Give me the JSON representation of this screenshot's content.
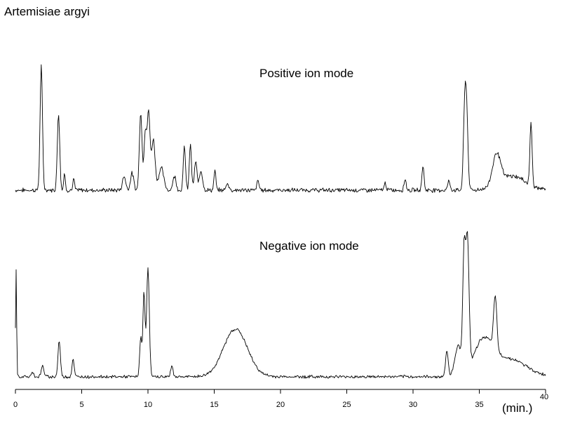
{
  "title": "Artemisiae  argyi",
  "chart_data": [
    {
      "type": "line",
      "name": "Positive ion mode",
      "label": "Positive ion mode",
      "xlim": [
        0,
        40
      ],
      "baseline": 6,
      "noise": 1.2,
      "peaks": [
        {
          "x": 1.95,
          "h": 88,
          "w": 0.09
        },
        {
          "x": 3.25,
          "h": 55,
          "w": 0.09
        },
        {
          "x": 3.7,
          "h": 12,
          "w": 0.06
        },
        {
          "x": 4.4,
          "h": 8,
          "w": 0.06
        },
        {
          "x": 8.2,
          "h": 10,
          "w": 0.12
        },
        {
          "x": 8.8,
          "h": 12,
          "w": 0.12
        },
        {
          "x": 9.45,
          "h": 56,
          "w": 0.1
        },
        {
          "x": 9.8,
          "h": 42,
          "w": 0.1
        },
        {
          "x": 10.05,
          "h": 54,
          "w": 0.1
        },
        {
          "x": 10.4,
          "h": 36,
          "w": 0.14
        },
        {
          "x": 11.0,
          "h": 16,
          "w": 0.18
        },
        {
          "x": 12.0,
          "h": 10,
          "w": 0.12
        },
        {
          "x": 12.75,
          "h": 32,
          "w": 0.08
        },
        {
          "x": 13.2,
          "h": 33,
          "w": 0.08
        },
        {
          "x": 13.6,
          "h": 20,
          "w": 0.1
        },
        {
          "x": 14.0,
          "h": 14,
          "w": 0.12
        },
        {
          "x": 15.05,
          "h": 14,
          "w": 0.07
        },
        {
          "x": 16.0,
          "h": 5,
          "w": 0.1
        },
        {
          "x": 18.3,
          "h": 7,
          "w": 0.08
        },
        {
          "x": 27.9,
          "h": 5,
          "w": 0.08
        },
        {
          "x": 29.4,
          "h": 8,
          "w": 0.08
        },
        {
          "x": 30.75,
          "h": 17,
          "w": 0.08
        },
        {
          "x": 32.7,
          "h": 6,
          "w": 0.1
        },
        {
          "x": 33.9,
          "h": 55,
          "w": 0.1
        },
        {
          "x": 34.05,
          "h": 48,
          "w": 0.1
        },
        {
          "x": 36.3,
          "h": 22,
          "w": 0.3
        },
        {
          "x": 37.5,
          "h": 10,
          "w": 1.0
        },
        {
          "x": 38.9,
          "h": 45,
          "w": 0.08
        }
      ]
    },
    {
      "type": "line",
      "name": "Negative ion mode",
      "label": "Negative ion mode",
      "xlim": [
        0,
        40
      ],
      "baseline": 3,
      "noise": 1.0,
      "peaks": [
        {
          "x": 0.05,
          "h": 90,
          "w": 0.04
        },
        {
          "x": 1.3,
          "h": 4,
          "w": 0.08
        },
        {
          "x": 2.05,
          "h": 9,
          "w": 0.1
        },
        {
          "x": 3.3,
          "h": 30,
          "w": 0.09
        },
        {
          "x": 4.35,
          "h": 15,
          "w": 0.08
        },
        {
          "x": 9.45,
          "h": 33,
          "w": 0.08
        },
        {
          "x": 9.7,
          "h": 70,
          "w": 0.08
        },
        {
          "x": 10.0,
          "h": 92,
          "w": 0.1
        },
        {
          "x": 11.8,
          "h": 10,
          "w": 0.08
        },
        {
          "x": 16.6,
          "h": 40,
          "w": 0.9
        },
        {
          "x": 32.55,
          "h": 22,
          "w": 0.1
        },
        {
          "x": 33.4,
          "h": 25,
          "w": 0.25
        },
        {
          "x": 33.85,
          "h": 95,
          "w": 0.1
        },
        {
          "x": 34.1,
          "h": 110,
          "w": 0.12
        },
        {
          "x": 35.3,
          "h": 28,
          "w": 0.7
        },
        {
          "x": 36.2,
          "h": 45,
          "w": 0.12
        },
        {
          "x": 37.2,
          "h": 15,
          "w": 1.3
        }
      ]
    }
  ],
  "x_axis": {
    "ticks": [
      0,
      5,
      10,
      15,
      20,
      25,
      30,
      35,
      40
    ],
    "tick_labels": [
      "0",
      "5",
      "10",
      "15",
      "20",
      "25",
      "30",
      "35",
      "40"
    ],
    "unit_label": "(min.)",
    "range": [
      0,
      40
    ]
  }
}
